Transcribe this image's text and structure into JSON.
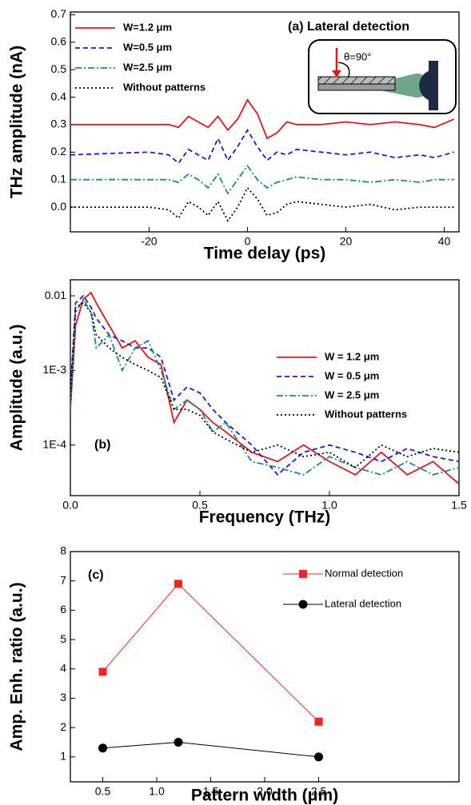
{
  "chart_data": [
    {
      "type": "line",
      "xlabel": "Time delay (ps)",
      "ylabel": "THz amplitude (nA)",
      "annotation": "(a) Lateral detection",
      "inset_label": "θ=90°",
      "xlim": [
        -36,
        43
      ],
      "xticks": [
        -20,
        0,
        20,
        40
      ],
      "ylim": [
        -0.09,
        0.71
      ],
      "yticks": [
        {
          "value": 0,
          "label": "0.0"
        },
        0.1,
        0.2,
        0.3,
        0.4,
        0.5,
        0.6,
        0.7
      ],
      "legend": "upper left",
      "x": [
        -36,
        -20,
        -16,
        -14,
        -12,
        -10,
        -8,
        -6,
        -4,
        -2,
        0,
        2,
        4,
        6,
        8,
        10,
        15,
        20,
        25,
        30,
        35,
        38,
        42
      ],
      "series": [
        {
          "name": "W=1.2 μm",
          "color": "#e8141c",
          "dash": "solid",
          "values": [
            0.3,
            0.3,
            0.3,
            0.29,
            0.33,
            0.31,
            0.29,
            0.33,
            0.28,
            0.32,
            0.39,
            0.34,
            0.25,
            0.27,
            0.31,
            0.3,
            0.3,
            0.31,
            0.3,
            0.31,
            0.3,
            0.29,
            0.32
          ]
        },
        {
          "name": "W=0.5 μm",
          "color": "#1a1adc",
          "dash": "dashed",
          "values": [
            0.19,
            0.2,
            0.19,
            0.16,
            0.21,
            0.19,
            0.17,
            0.25,
            0.17,
            0.22,
            0.28,
            0.22,
            0.17,
            0.2,
            0.19,
            0.21,
            0.2,
            0.19,
            0.2,
            0.18,
            0.19,
            0.18,
            0.2
          ]
        },
        {
          "name": "W=2.5 μm",
          "color": "#1a8a8a",
          "dash": "dashdot",
          "values": [
            0.1,
            0.1,
            0.1,
            0.09,
            0.12,
            0.1,
            0.07,
            0.12,
            0.05,
            0.1,
            0.15,
            0.1,
            0.07,
            0.09,
            0.1,
            0.11,
            0.1,
            0.1,
            0.09,
            0.1,
            0.09,
            0.1,
            0.1
          ]
        },
        {
          "name": "Without patterns",
          "color": "#000000",
          "dash": "dotted",
          "values": [
            0.0,
            0.0,
            -0.01,
            -0.04,
            0.02,
            0.0,
            -0.03,
            0.02,
            -0.05,
            0.0,
            0.07,
            0.03,
            -0.03,
            -0.02,
            0.01,
            0.02,
            0.01,
            0.0,
            0.01,
            -0.01,
            0.0,
            0.0,
            0.0
          ]
        }
      ]
    },
    {
      "type": "line",
      "xlabel": "Frequency (THz)",
      "ylabel": "Amplitude (a.u.)",
      "annotation": "(b)",
      "xlim": [
        0,
        1.5
      ],
      "xticks": [
        {
          "value": 0,
          "label": "0.0"
        },
        0.5,
        {
          "value": 1,
          "label": "1.0"
        },
        1.5
      ],
      "ylim": [
        2.1e-05,
        0.0164
      ],
      "log_y": true,
      "yticks": [
        {
          "value": 0.0001,
          "label": "1E-4"
        },
        {
          "value": 0.001,
          "label": "1E-3"
        },
        0.01
      ],
      "legend": "right",
      "x": [
        0.0,
        0.02,
        0.05,
        0.08,
        0.1,
        0.15,
        0.2,
        0.25,
        0.3,
        0.35,
        0.4,
        0.45,
        0.5,
        0.55,
        0.6,
        0.7,
        0.8,
        0.9,
        1.0,
        1.1,
        1.2,
        1.3,
        1.4,
        1.5
      ],
      "series": [
        {
          "name": "W = 1.2 μm",
          "color": "#e8141c",
          "dash": "solid",
          "values": [
            0.0003,
            0.004,
            0.009,
            0.011,
            0.008,
            0.004,
            0.002,
            0.0025,
            0.0015,
            0.0012,
            0.0002,
            0.0004,
            0.0003,
            0.0002,
            0.00015,
            8e-05,
            6e-05,
            0.0001,
            6e-05,
            4e-05,
            8e-05,
            4e-05,
            6e-05,
            3e-05
          ]
        },
        {
          "name": "W = 0.5 μm",
          "color": "#1a1adc",
          "dash": "dashed",
          "values": [
            0.0005,
            0.008,
            0.01,
            0.007,
            0.005,
            0.003,
            0.0025,
            0.002,
            0.002,
            0.0015,
            0.0004,
            0.0006,
            0.0005,
            0.0003,
            0.0002,
            0.0001,
            4e-05,
            8e-05,
            0.0001,
            8e-05,
            6e-05,
            9e-05,
            7e-05,
            6e-05
          ]
        },
        {
          "name": "W = 2.5 μm",
          "color": "#1a8a8a",
          "dash": "dashdot",
          "values": [
            0.0003,
            0.006,
            0.009,
            0.006,
            0.002,
            0.003,
            0.001,
            0.002,
            0.0025,
            0.001,
            0.0003,
            0.0004,
            0.0003,
            0.00015,
            0.0002,
            6e-05,
            5e-05,
            4e-05,
            7e-05,
            5e-05,
            4e-05,
            6e-05,
            4e-05,
            5e-05
          ]
        },
        {
          "name": "Without patterns",
          "color": "#000000",
          "dash": "dotted",
          "values": [
            0.0004,
            0.007,
            0.008,
            0.006,
            0.003,
            0.002,
            0.0015,
            0.0012,
            0.001,
            0.0008,
            0.0003,
            0.0003,
            0.00025,
            0.00015,
            0.00012,
            8e-05,
            0.0001,
            7e-05,
            8e-05,
            5e-05,
            0.0001,
            7e-05,
            9e-05,
            8e-05
          ]
        }
      ]
    },
    {
      "type": "line",
      "xlabel": "Pattern width (μm)",
      "ylabel": "Amp. Enh. ratio (a.u.)",
      "annotation": "(c)",
      "xlim": [
        0.2,
        3.8
      ],
      "xticks": [
        0.5,
        {
          "value": 1,
          "label": "1.0"
        },
        1.5,
        {
          "value": 2,
          "label": "2.0"
        },
        2.5
      ],
      "ylim": [
        0.15,
        8
      ],
      "yticks": [
        1,
        2,
        3,
        4,
        5,
        6,
        7,
        8
      ],
      "legend": "upper right",
      "x": [
        0.5,
        1.2,
        2.5
      ],
      "series": [
        {
          "name": "Normal detection",
          "color": "#ff2020",
          "dash": "solid",
          "marker": "square",
          "values": [
            3.9,
            6.9,
            2.2
          ]
        },
        {
          "name": "Lateral detection",
          "color": "#000000",
          "dash": "solid",
          "marker": "circle",
          "values": [
            1.3,
            1.5,
            1.0
          ]
        }
      ]
    }
  ]
}
